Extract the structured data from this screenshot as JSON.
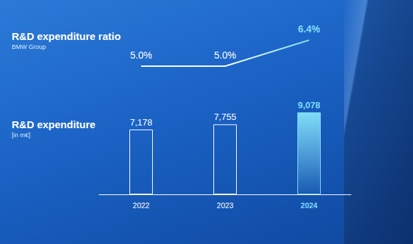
{
  "chart_data": [
    {
      "type": "line",
      "title": "R&D expenditure ratio",
      "subtitle": "BMW Group",
      "categories": [
        "2022",
        "2023",
        "2024"
      ],
      "values": [
        5.0,
        5.0,
        6.4
      ],
      "value_labels": [
        "5.0%",
        "5.0%",
        "6.4%"
      ],
      "colors": [
        "#ffffff",
        "#ffffff",
        "#7fdcf7"
      ],
      "ylim": [
        4,
        7
      ],
      "data_labels": true,
      "tick_labels": false,
      "grid": false
    },
    {
      "type": "bar",
      "title": "R&D expenditure",
      "subtitle": "[in m€]",
      "categories": [
        "2022",
        "2023",
        "2024"
      ],
      "values": [
        7178,
        7755,
        9078
      ],
      "value_labels": [
        "7,178",
        "7,755",
        "9,078"
      ],
      "color": "#ffffff",
      "colors": [
        "#ffffff",
        "#ffffff",
        "#7fdcf7"
      ],
      "ylim": [
        0,
        10000
      ],
      "data_labels": true,
      "tick_labels": "x",
      "grid": false
    }
  ]
}
